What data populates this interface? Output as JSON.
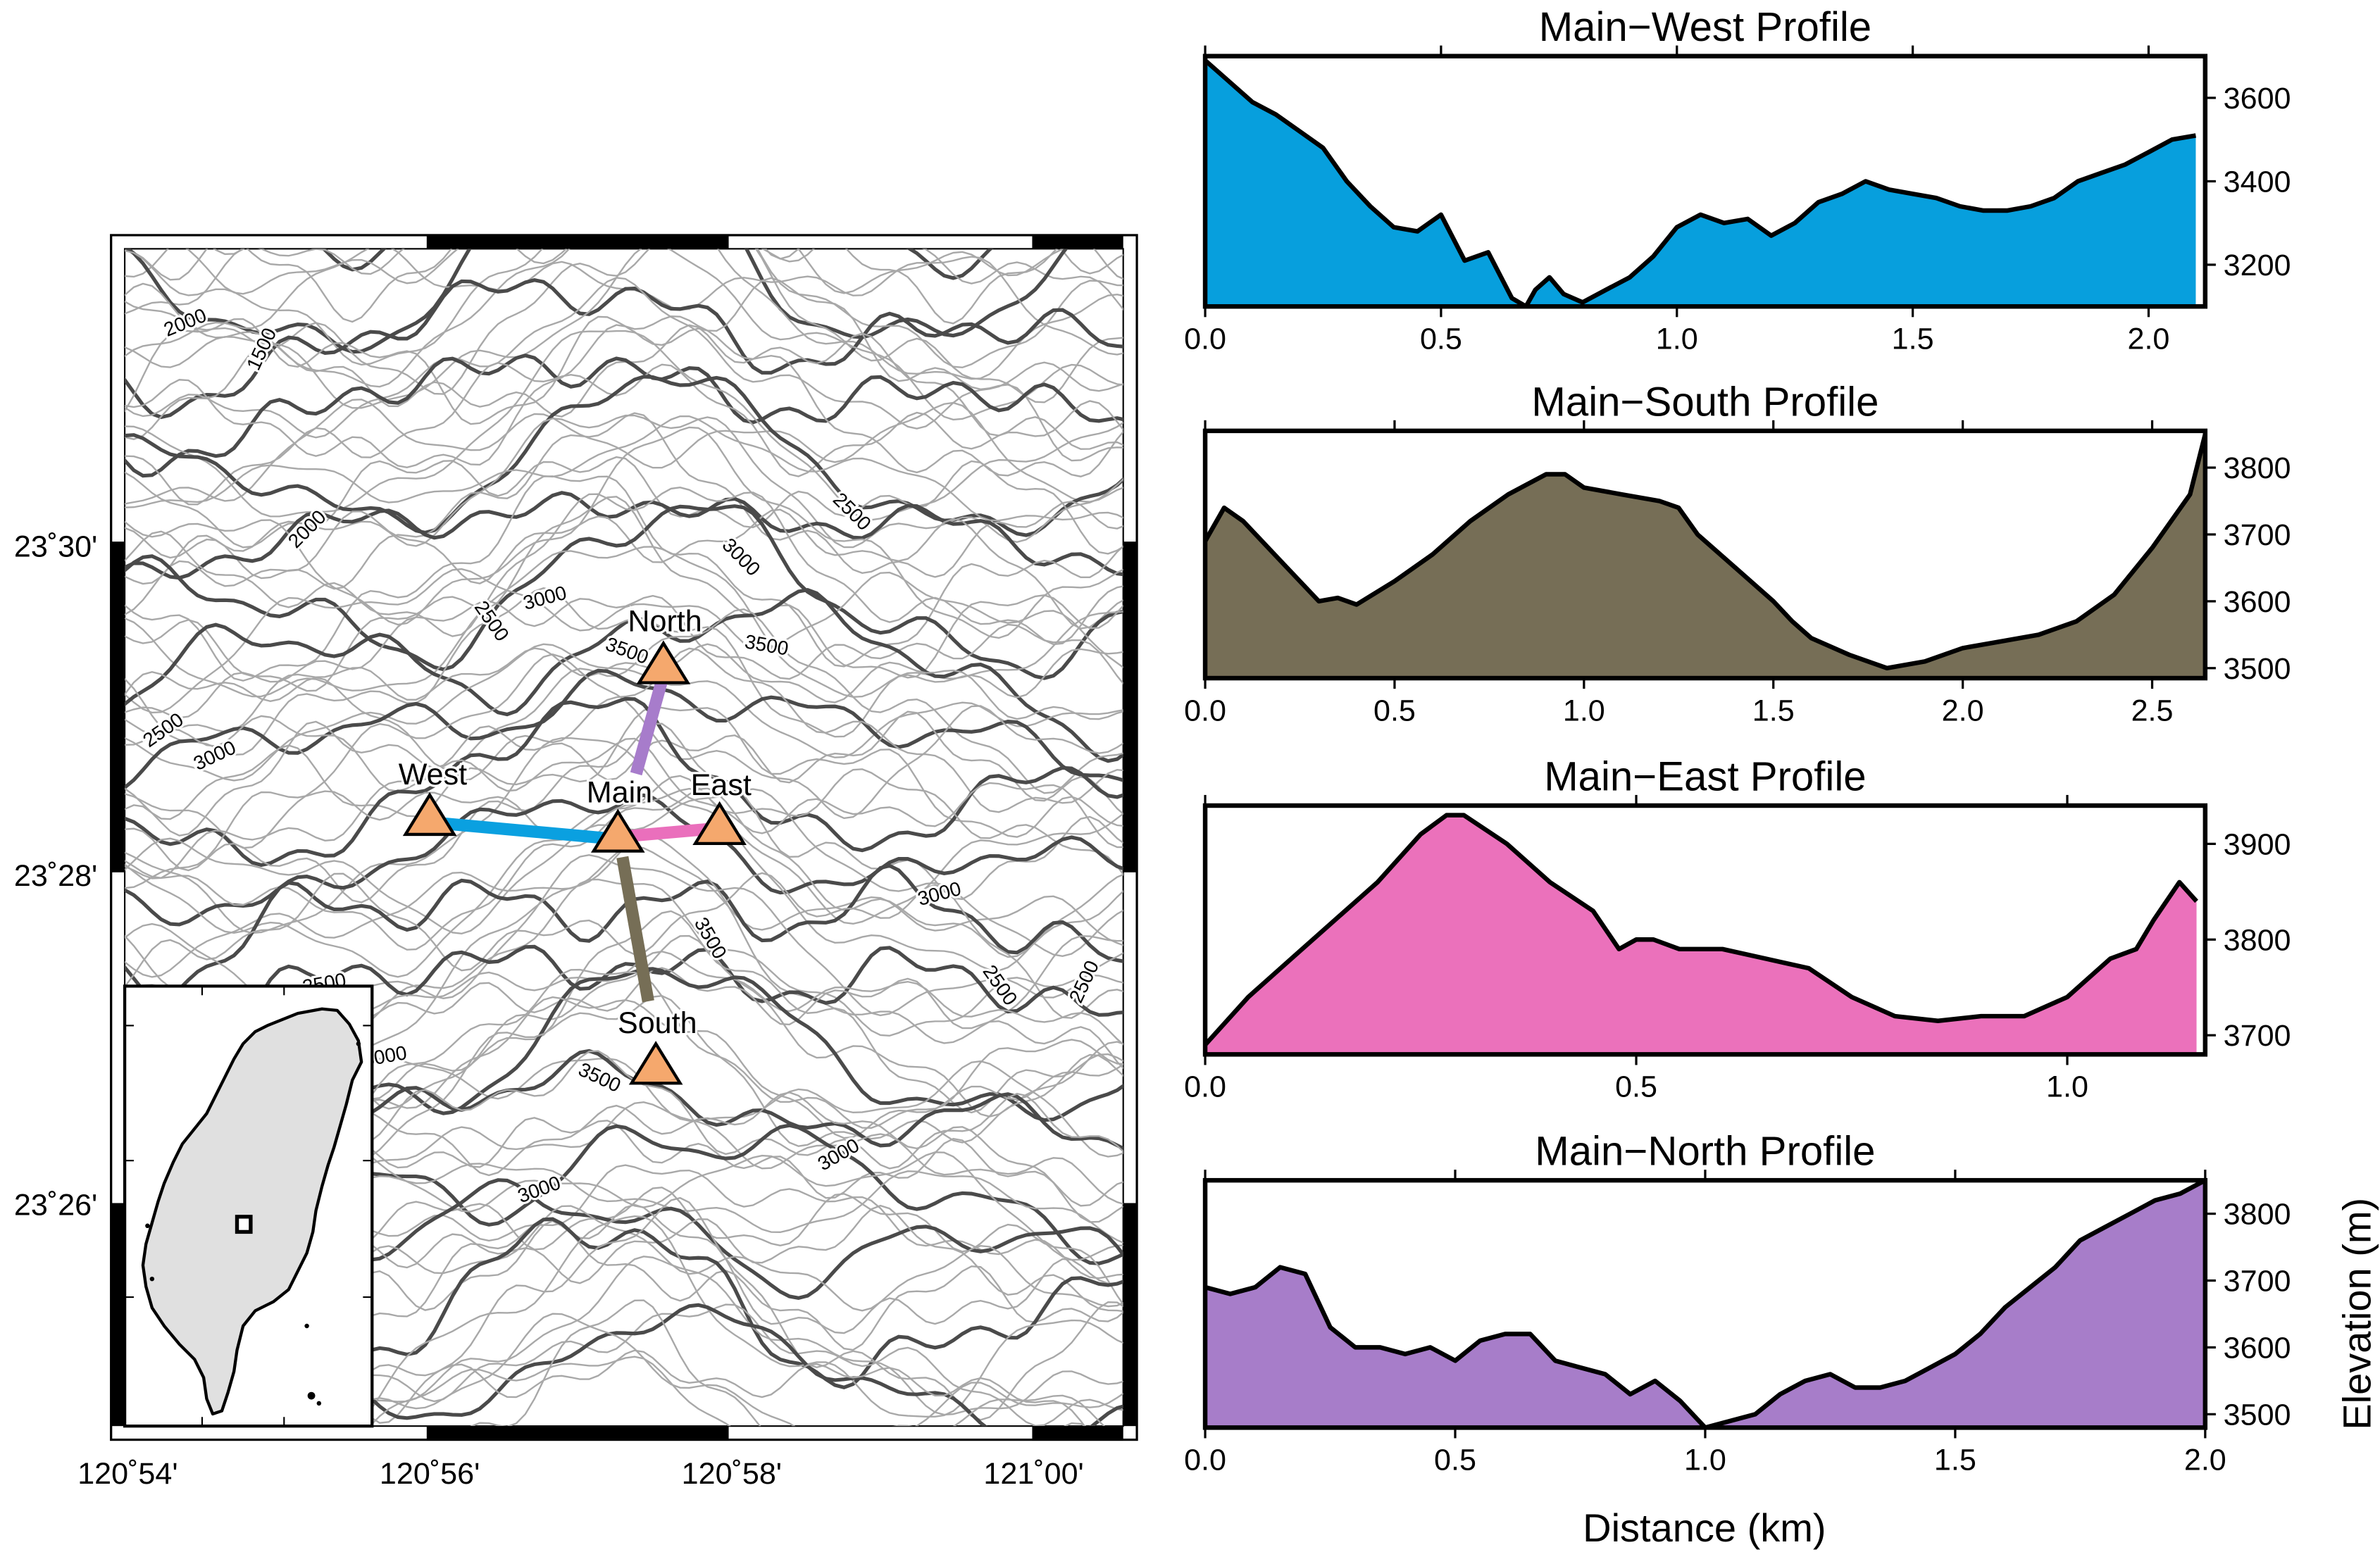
{
  "map": {
    "lon_labels": [
      "120˚54'",
      "120˚56'",
      "120˚58'",
      "121˚00'"
    ],
    "lat_labels": [
      "23˚30'",
      "23˚28'",
      "23˚26'"
    ],
    "stations": [
      "North",
      "West",
      "Main",
      "East",
      "South"
    ],
    "contour_labels": [
      "2000",
      "1500",
      "2000",
      "2500",
      "3000",
      "2500",
      "3500",
      "3500",
      "3000",
      "2500",
      "2500",
      "3000",
      "3500",
      "3000",
      "2500",
      "2500",
      "3500",
      "3000",
      "3000",
      "2500",
      "3000"
    ],
    "line_colors": {
      "west": "#0aa0e0",
      "south": "#766e56",
      "east": "#ea6fbc",
      "north": "#a77ccb"
    },
    "station_color": "#f5a86d",
    "inset": {
      "island": "Taiwan",
      "fill": "#e0e0e0"
    }
  },
  "profiles": [
    {
      "title": "Main−West Profile",
      "color": "#079fdd",
      "xticks": [
        "0.0",
        "0.5",
        "1.0",
        "1.5",
        "2.0"
      ],
      "yticks": [
        "3600",
        "3400",
        "3200"
      ],
      "xlim": [
        0,
        2.12
      ],
      "ylim": [
        3100,
        3700
      ]
    },
    {
      "title": "Main−South Profile",
      "color": "#766e56",
      "xticks": [
        "0.0",
        "0.5",
        "1.0",
        "1.5",
        "2.0",
        "2.5"
      ],
      "yticks": [
        "3800",
        "3700",
        "3600",
        "3500"
      ],
      "xlim": [
        0,
        2.64
      ],
      "ylim": [
        3485,
        3855
      ]
    },
    {
      "title": "Main−East Profile",
      "color": "#eb71bb",
      "xticks": [
        "0.0",
        "0.5",
        "1.0"
      ],
      "yticks": [
        "3900",
        "3800",
        "3700"
      ],
      "xlim": [
        0,
        1.16
      ],
      "ylim": [
        3680,
        3940
      ]
    },
    {
      "title": "Main−North Profile",
      "color": "#a77dc9",
      "xticks": [
        "0.0",
        "0.5",
        "1.0",
        "1.5",
        "2.0"
      ],
      "yticks": [
        "3800",
        "3700",
        "3600",
        "3500"
      ],
      "xlim": [
        0,
        2.0
      ],
      "ylim": [
        3480,
        3850
      ]
    }
  ],
  "xlabel": "Distance (km)",
  "ylabel": "Elevation (m)",
  "chart_data": [
    {
      "type": "area",
      "title": "Main−West Profile",
      "xlabel": "",
      "ylabel": "",
      "x": [
        0,
        0.05,
        0.1,
        0.15,
        0.2,
        0.25,
        0.3,
        0.35,
        0.4,
        0.45,
        0.5,
        0.55,
        0.6,
        0.65,
        0.68,
        0.7,
        0.73,
        0.76,
        0.8,
        0.85,
        0.9,
        0.95,
        1.0,
        1.05,
        1.1,
        1.15,
        1.2,
        1.25,
        1.3,
        1.35,
        1.4,
        1.45,
        1.5,
        1.55,
        1.6,
        1.65,
        1.7,
        1.75,
        1.8,
        1.85,
        1.9,
        1.95,
        2.0,
        2.05,
        2.1
      ],
      "y": [
        3690,
        3640,
        3590,
        3560,
        3520,
        3480,
        3400,
        3340,
        3290,
        3280,
        3320,
        3210,
        3230,
        3120,
        3100,
        3140,
        3170,
        3130,
        3110,
        3140,
        3170,
        3220,
        3290,
        3320,
        3300,
        3310,
        3270,
        3300,
        3350,
        3370,
        3400,
        3380,
        3370,
        3360,
        3340,
        3330,
        3330,
        3340,
        3360,
        3400,
        3420,
        3440,
        3470,
        3500,
        3510
      ],
      "xlim": [
        0,
        2.12
      ],
      "ylim": [
        3100,
        3700
      ]
    },
    {
      "type": "area",
      "title": "Main−South Profile",
      "xlabel": "",
      "ylabel": "",
      "x": [
        0,
        0.05,
        0.1,
        0.2,
        0.3,
        0.35,
        0.4,
        0.5,
        0.6,
        0.7,
        0.8,
        0.9,
        0.95,
        1.0,
        1.1,
        1.2,
        1.25,
        1.3,
        1.4,
        1.5,
        1.55,
        1.6,
        1.7,
        1.8,
        1.9,
        2.0,
        2.1,
        2.2,
        2.3,
        2.4,
        2.5,
        2.6,
        2.64
      ],
      "y": [
        3690,
        3740,
        3720,
        3660,
        3600,
        3605,
        3595,
        3630,
        3670,
        3720,
        3760,
        3790,
        3790,
        3770,
        3760,
        3750,
        3740,
        3700,
        3650,
        3600,
        3570,
        3545,
        3520,
        3500,
        3510,
        3530,
        3540,
        3550,
        3570,
        3610,
        3680,
        3760,
        3850
      ],
      "xlim": [
        0,
        2.64
      ],
      "ylim": [
        3485,
        3855
      ]
    },
    {
      "type": "area",
      "title": "Main−East Profile",
      "xlabel": "",
      "ylabel": "",
      "x": [
        0,
        0.05,
        0.1,
        0.15,
        0.2,
        0.25,
        0.28,
        0.3,
        0.35,
        0.4,
        0.45,
        0.48,
        0.5,
        0.52,
        0.55,
        0.6,
        0.65,
        0.7,
        0.75,
        0.8,
        0.85,
        0.9,
        0.95,
        1.0,
        1.05,
        1.08,
        1.1,
        1.13,
        1.15
      ],
      "y": [
        3690,
        3740,
        3780,
        3820,
        3860,
        3910,
        3930,
        3930,
        3900,
        3860,
        3830,
        3790,
        3800,
        3800,
        3790,
        3790,
        3780,
        3770,
        3740,
        3720,
        3715,
        3720,
        3720,
        3740,
        3780,
        3790,
        3820,
        3860,
        3840
      ],
      "xlim": [
        0,
        1.16
      ],
      "ylim": [
        3680,
        3940
      ]
    },
    {
      "type": "area",
      "title": "Main−North Profile",
      "xlabel": "Distance (km)",
      "ylabel": "Elevation (m)",
      "x": [
        0,
        0.05,
        0.1,
        0.15,
        0.2,
        0.25,
        0.3,
        0.35,
        0.4,
        0.45,
        0.5,
        0.55,
        0.6,
        0.65,
        0.7,
        0.75,
        0.8,
        0.85,
        0.9,
        0.95,
        1.0,
        1.05,
        1.1,
        1.15,
        1.2,
        1.25,
        1.3,
        1.35,
        1.4,
        1.45,
        1.5,
        1.55,
        1.6,
        1.65,
        1.7,
        1.75,
        1.8,
        1.85,
        1.9,
        1.95,
        2.0
      ],
      "y": [
        3690,
        3680,
        3690,
        3720,
        3710,
        3630,
        3600,
        3600,
        3590,
        3600,
        3580,
        3610,
        3620,
        3620,
        3580,
        3570,
        3560,
        3530,
        3550,
        3520,
        3480,
        3490,
        3500,
        3530,
        3550,
        3560,
        3540,
        3540,
        3550,
        3570,
        3590,
        3620,
        3660,
        3690,
        3720,
        3760,
        3780,
        3800,
        3820,
        3830,
        3850
      ],
      "xlim": [
        0,
        2.0
      ],
      "ylim": [
        3480,
        3850
      ]
    }
  ]
}
